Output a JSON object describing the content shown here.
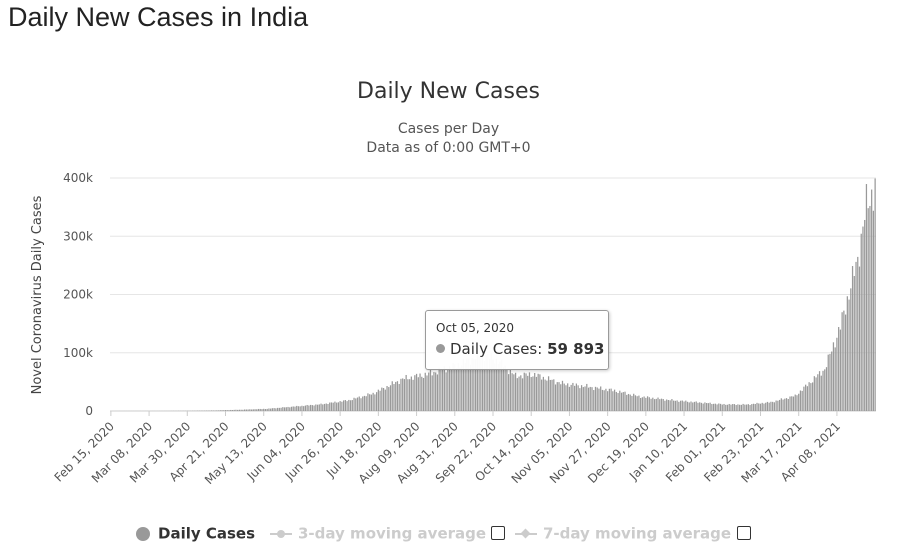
{
  "page": {
    "heading": "Daily New Cases in India"
  },
  "chart": {
    "title": "Daily New Cases",
    "subtitle_line1": "Cases per Day",
    "subtitle_line2": "Data as of 0:00 GMT+0"
  },
  "legend": {
    "daily_cases": "Daily Cases",
    "three_day": "3-day moving average",
    "seven_day": "7-day moving average"
  },
  "tooltip": {
    "date": "Oct 05, 2020",
    "series_label": "Daily Cases: ",
    "value_text": "59 893"
  },
  "colors": {
    "bar": "#999999",
    "grid": "#e6e6e6",
    "legend_inactive": "#cccccc"
  },
  "chart_data": {
    "type": "bar",
    "title": "Daily New Cases",
    "subtitle": "Cases per Day / Data as of 0:00 GMT+0",
    "xlabel": "",
    "ylabel": "Novel Coronavirus Daily Cases",
    "ylim": [
      0,
      400000
    ],
    "yticks": [
      0,
      100000,
      200000,
      300000,
      400000
    ],
    "ytick_labels": [
      "0",
      "100k",
      "200k",
      "300k",
      "400k"
    ],
    "grid": true,
    "legend_position": "bottom",
    "x_start": "Feb 15, 2020",
    "x_end": "Apr 30, 2021",
    "xtick_labels": [
      "Feb 15, 2020",
      "Mar 08, 2020",
      "Mar 30, 2020",
      "Apr 21, 2020",
      "May 13, 2020",
      "Jun 04, 2020",
      "Jun 26, 2020",
      "Jul 18, 2020",
      "Aug 09, 2020",
      "Aug 31, 2020",
      "Sep 22, 2020",
      "Oct 14, 2020",
      "Nov 05, 2020",
      "Nov 27, 2020",
      "Dec 19, 2020",
      "Jan 10, 2021",
      "Feb 01, 2021",
      "Feb 23, 2021",
      "Mar 17, 2021",
      "Apr 08, 2021"
    ],
    "series": [
      {
        "name": "Daily Cases",
        "points": [
          [
            "Feb 15, 2020",
            0
          ],
          [
            "Mar 15, 2020",
            100
          ],
          [
            "Apr 01, 2020",
            400
          ],
          [
            "Apr 15, 2020",
            1000
          ],
          [
            "May 01, 2020",
            2300
          ],
          [
            "May 15, 2020",
            3800
          ],
          [
            "Jun 01, 2020",
            8000
          ],
          [
            "Jun 15, 2020",
            11500
          ],
          [
            "Jul 01, 2020",
            18500
          ],
          [
            "Jul 15, 2020",
            30000
          ],
          [
            "Aug 01, 2020",
            55000
          ],
          [
            "Aug 15, 2020",
            63000
          ],
          [
            "Sep 01, 2020",
            78000
          ],
          [
            "Sep 16, 2020",
            97000
          ],
          [
            "Sep 25, 2020",
            86000
          ],
          [
            "Oct 05, 2020",
            59893
          ],
          [
            "Oct 15, 2020",
            63000
          ],
          [
            "Nov 01, 2020",
            47000
          ],
          [
            "Nov 15, 2020",
            42000
          ],
          [
            "Dec 01, 2020",
            35000
          ],
          [
            "Dec 15, 2020",
            25000
          ],
          [
            "Jan 01, 2021",
            19000
          ],
          [
            "Jan 15, 2021",
            15500
          ],
          [
            "Feb 01, 2021",
            11500
          ],
          [
            "Feb 15, 2021",
            11000
          ],
          [
            "Mar 01, 2021",
            15000
          ],
          [
            "Mar 15, 2021",
            26000
          ],
          [
            "Apr 01, 2021",
            72000
          ],
          [
            "Apr 10, 2021",
            145000
          ],
          [
            "Apr 16, 2021",
            215000
          ],
          [
            "Apr 20, 2021",
            260000
          ],
          [
            "Apr 25, 2021",
            352000
          ],
          [
            "Apr 30, 2021",
            386000
          ]
        ]
      },
      {
        "name": "3-day moving average",
        "visible": false
      },
      {
        "name": "7-day moving average",
        "visible": false
      }
    ],
    "highlight": {
      "date": "Oct 05, 2020",
      "value": 59893
    }
  }
}
